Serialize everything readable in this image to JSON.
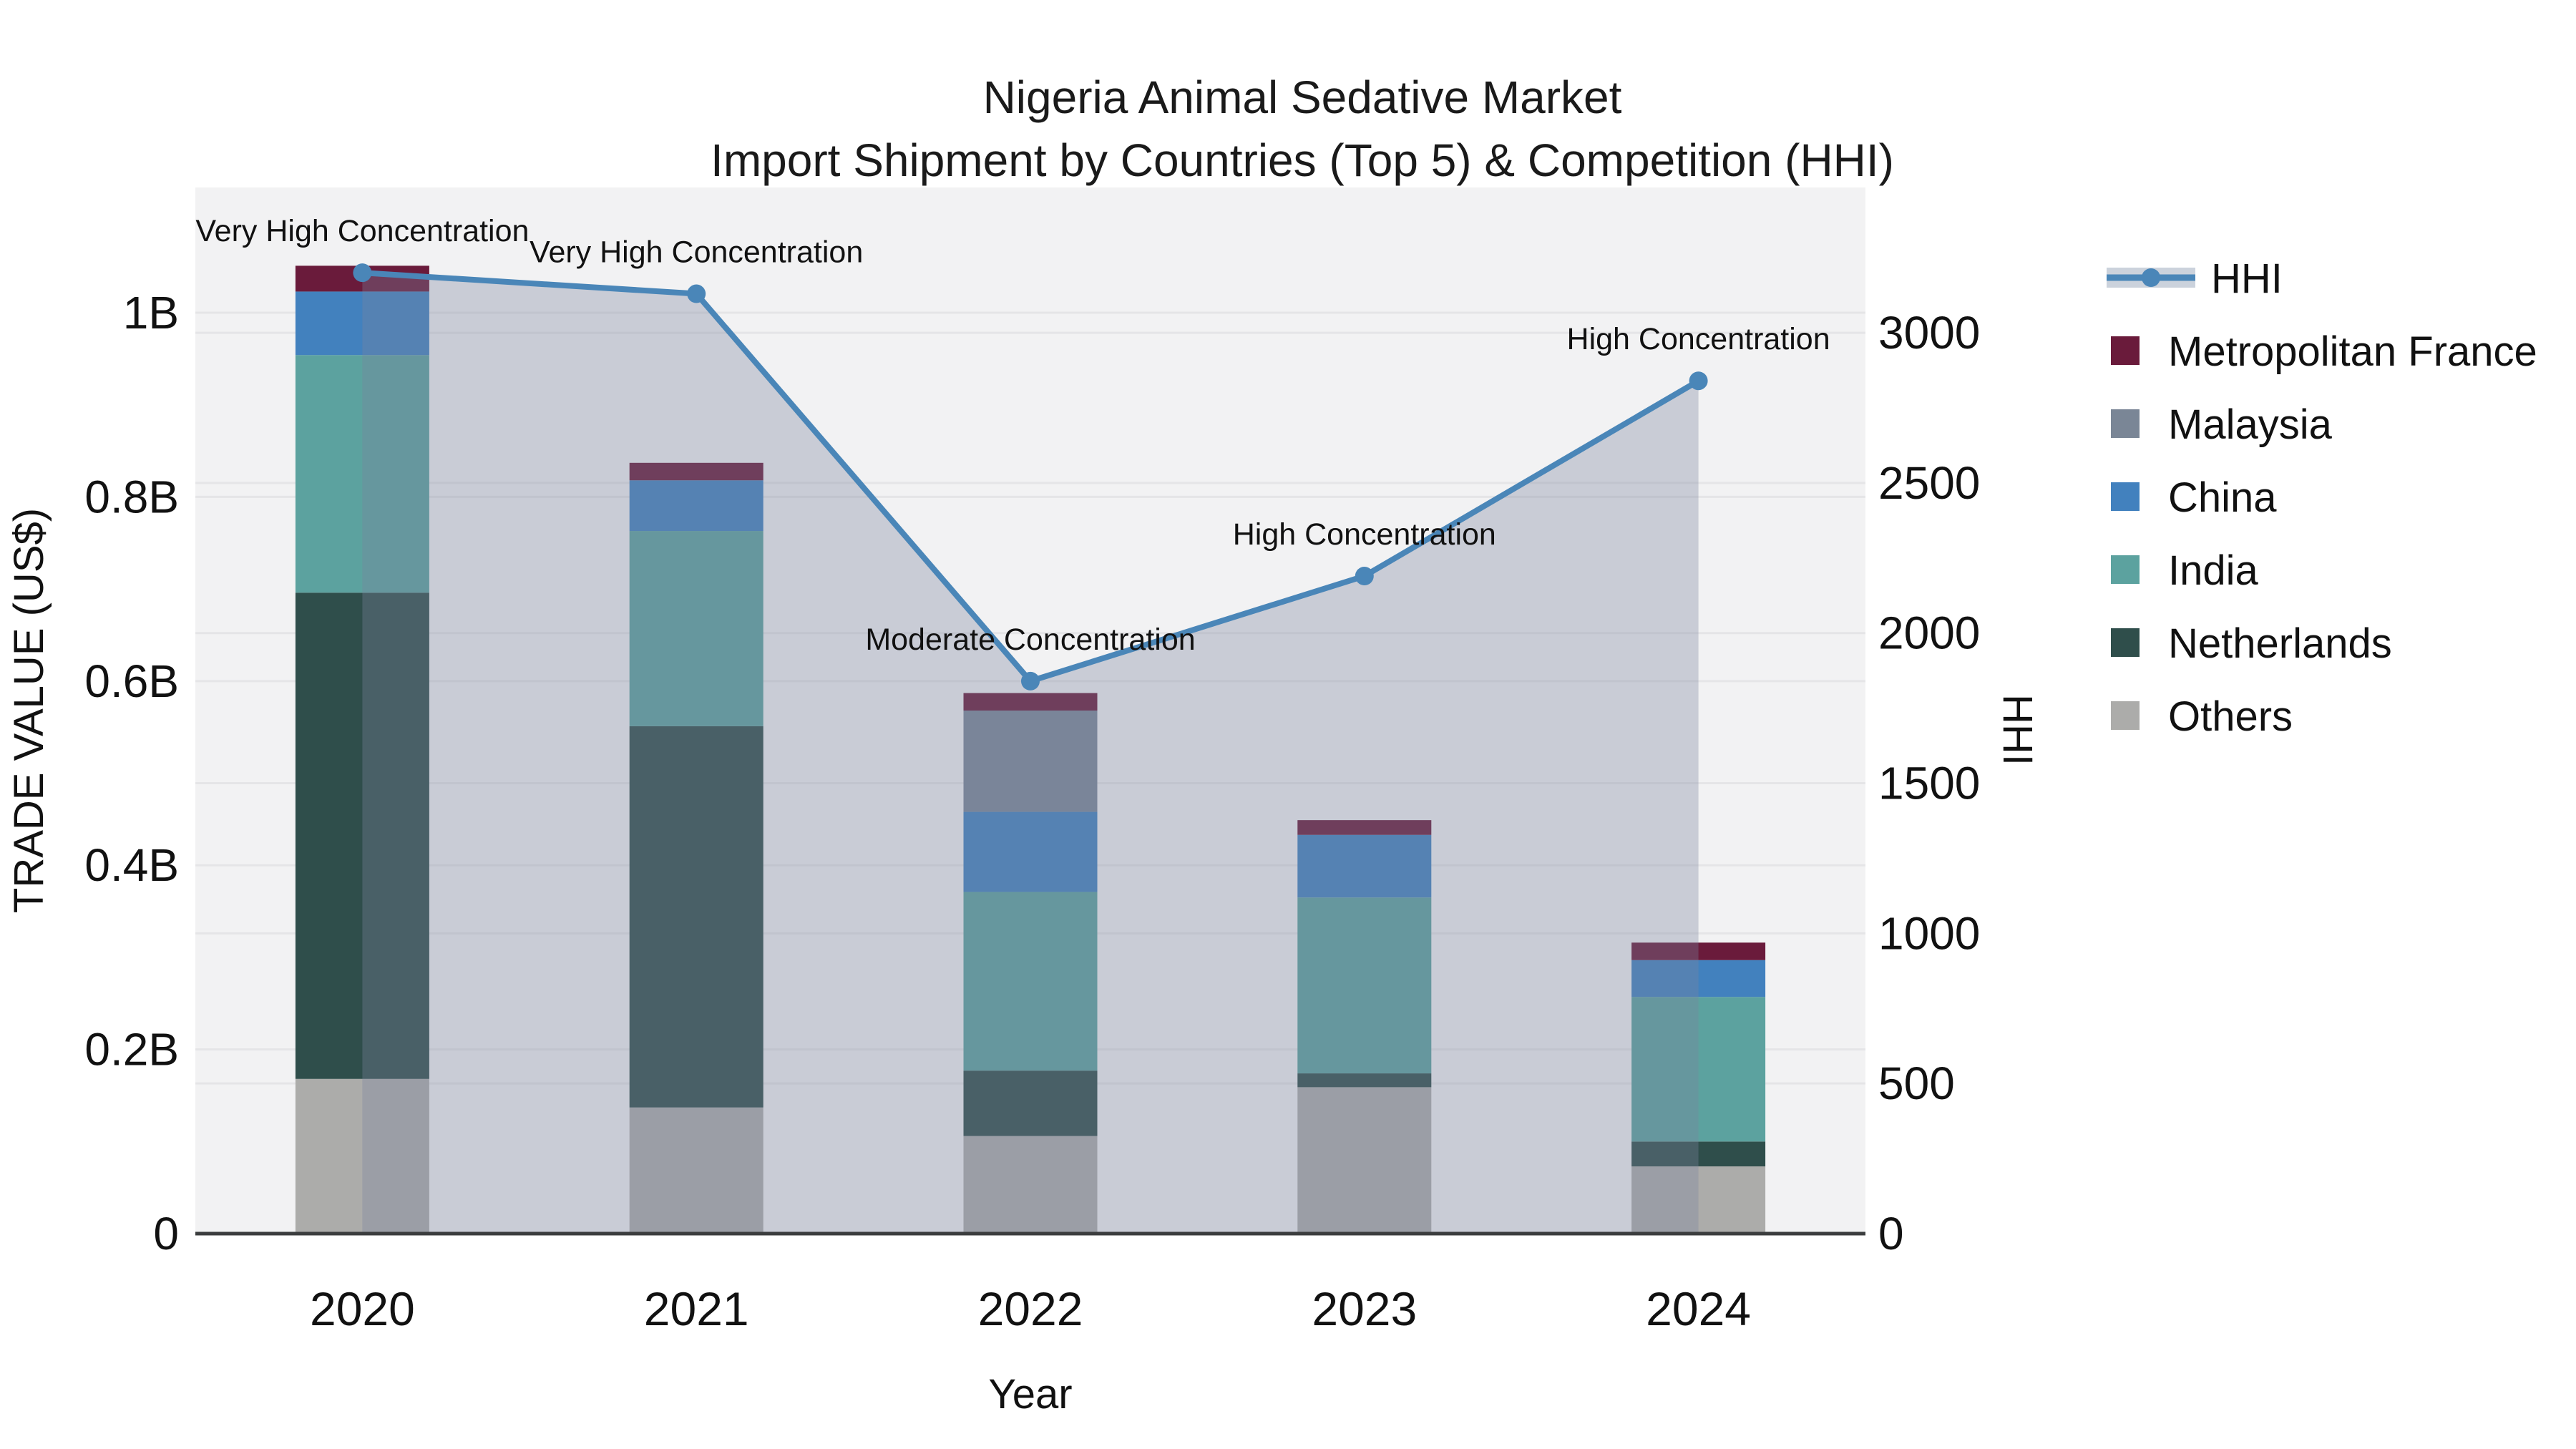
{
  "title": {
    "line1": "Nigeria Animal Sedative Market",
    "line2": "Import Shipment by Countries (Top 5) & Competition (HHI)"
  },
  "axes": {
    "left": {
      "title": "TRADE VALUE (US$)",
      "tick_labels": [
        "0",
        "0.2B",
        "0.4B",
        "0.6B",
        "0.8B",
        "1B"
      ],
      "tick_values": [
        0,
        0.2,
        0.4,
        0.6,
        0.8,
        1
      ]
    },
    "right": {
      "title": "HHI",
      "tick_labels": [
        "0",
        "500",
        "1000",
        "1500",
        "2000",
        "2500",
        "3000"
      ],
      "tick_values": [
        0,
        500,
        1000,
        1500,
        2000,
        2500,
        3000
      ]
    },
    "x": {
      "title": "Year",
      "tick_labels": [
        "2020",
        "2021",
        "2022",
        "2023",
        "2024"
      ]
    }
  },
  "chart_data": {
    "type": "bar",
    "stacked": true,
    "categories": [
      "2020",
      "2021",
      "2022",
      "2023",
      "2024"
    ],
    "unit": "billion US$",
    "series": [
      {
        "name": "Metropolitan France",
        "color": "#6A1B3B",
        "values": [
          0.028,
          0.019,
          0.019,
          0.016,
          0.019
        ]
      },
      {
        "name": "Malaysia",
        "color": "#7A8696",
        "values": [
          0,
          0,
          0.11,
          0,
          0
        ]
      },
      {
        "name": "China",
        "color": "#4281BE",
        "values": [
          0.069,
          0.055,
          0.087,
          0.068,
          0.04
        ]
      },
      {
        "name": "India",
        "color": "#5CA29F",
        "values": [
          0.258,
          0.212,
          0.194,
          0.191,
          0.157
        ]
      },
      {
        "name": "Netherlands",
        "color": "#2F4E4B",
        "values": [
          0.528,
          0.414,
          0.071,
          0.015,
          0.027
        ]
      },
      {
        "name": "Others",
        "color": "#ACACAA",
        "values": [
          0.168,
          0.137,
          0.106,
          0.159,
          0.073
        ]
      }
    ],
    "bar_totals": [
      1.051,
      0.837,
      0.587,
      0.449,
      0.316
    ],
    "line_series": {
      "name": "HHI",
      "axis": "right",
      "color": "#4A86B8",
      "area_fill": "rgba(123,132,157,0.34)",
      "values": [
        3200,
        3130,
        1840,
        2190,
        2840
      ]
    },
    "annotations": [
      {
        "category": "2020",
        "text": "Very High Concentration"
      },
      {
        "category": "2021",
        "text": "Very High Concentration"
      },
      {
        "category": "2022",
        "text": "Moderate Concentration"
      },
      {
        "category": "2023",
        "text": "High Concentration"
      },
      {
        "category": "2024",
        "text": "High Concentration"
      }
    ],
    "ylim": [
      0,
      1.136
    ],
    "y2lim": [
      0,
      3484
    ],
    "grid": true,
    "legend_position": "right",
    "title": "Nigeria Animal Sedative Market Import Shipment by Countries (Top 5) & Competition (HHI)",
    "xlabel": "Year",
    "ylabel": "TRADE VALUE (US$)",
    "ylabel2": "HHI"
  },
  "colors": {
    "plot_bg": "#F2F2F3",
    "grid": "#E5E5E7",
    "axis_line": "#3B3D3E",
    "legend_hhi_band": "#CBD2DC"
  }
}
